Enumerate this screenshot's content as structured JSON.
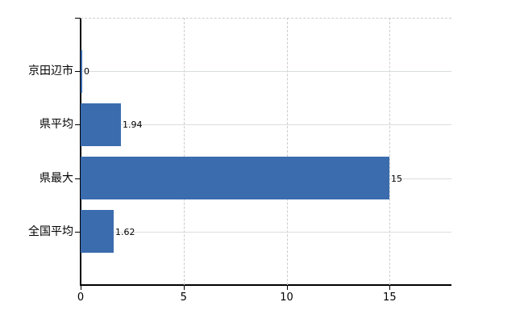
{
  "chart_data": {
    "type": "bar",
    "orientation": "horizontal",
    "title": "",
    "xlabel": "",
    "ylabel": "",
    "categories": [
      "京田辺市",
      "県平均",
      "県最大",
      "全国平均"
    ],
    "values": [
      0,
      1.94,
      15,
      1.62
    ],
    "value_labels": [
      "0",
      "1.94",
      "15",
      "1.62"
    ],
    "xticks": [
      0,
      5,
      10,
      15
    ],
    "xtick_labels": [
      "0",
      "5",
      "10",
      "15"
    ],
    "xlim": [
      0,
      18
    ],
    "grid": "on",
    "legend": "none",
    "colors": {
      "bar": "#3b6cae",
      "grid_solid": "#d9ded9",
      "grid_dashed": "#cccccc",
      "axis": "#000000",
      "text": "#000000",
      "background": "#ffffff"
    }
  }
}
